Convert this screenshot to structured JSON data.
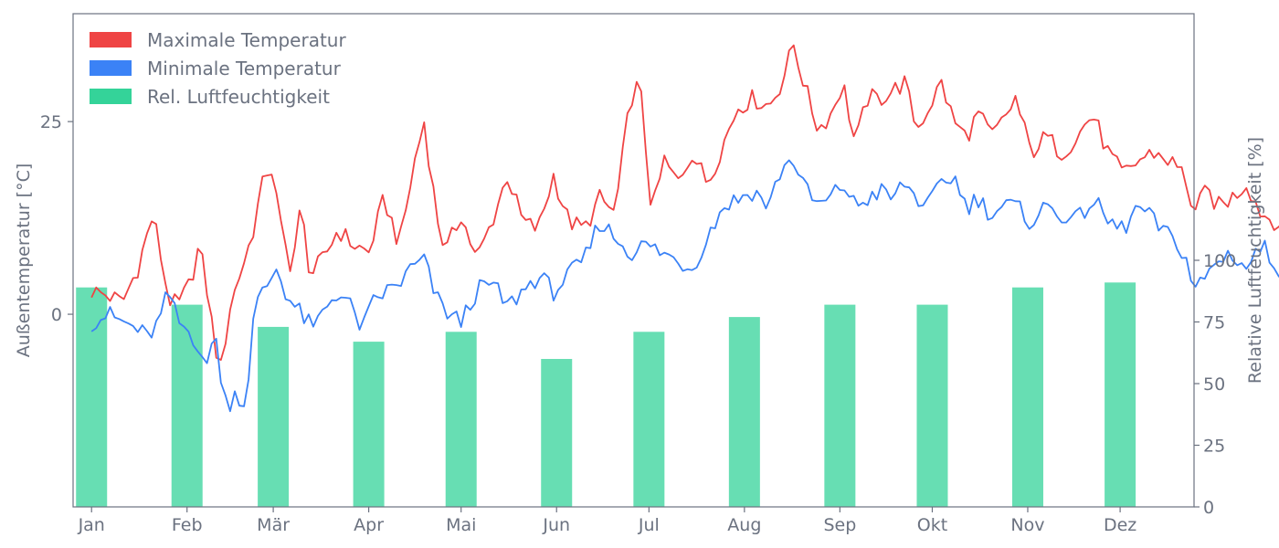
{
  "chart_data": {
    "type": "line+bar",
    "x_axis": {
      "tick_labels": [
        "Jan",
        "Feb",
        "Mär",
        "Apr",
        "Mai",
        "Jun",
        "Jul",
        "Aug",
        "Sep",
        "Okt",
        "Nov",
        "Dez"
      ],
      "range_days": [
        -6,
        358
      ]
    },
    "y_left": {
      "label": "Außentemperatur [°C]",
      "ticks": [
        0,
        25
      ],
      "range": [
        -25,
        39
      ]
    },
    "y_right": {
      "label": "Relative Luftfeuchtigkeit [%]",
      "ticks": [
        0,
        25,
        50,
        75,
        100
      ],
      "range": [
        0,
        200
      ]
    },
    "legend": {
      "position": "top-left",
      "entries": [
        {
          "label": "Maximale Temperatur",
          "color": "#ef4444"
        },
        {
          "label": "Minimale Temperatur",
          "color": "#3b82f6"
        },
        {
          "label": "Rel. Luftfeuchtigkeit",
          "color": "#34d399"
        }
      ]
    },
    "series": [
      {
        "name": "Maximale Temperatur",
        "type": "line",
        "color": "#ef4444",
        "keypoints": [
          [
            0,
            3
          ],
          [
            5,
            2.5
          ],
          [
            10,
            1.5
          ],
          [
            15,
            6
          ],
          [
            20,
            13
          ],
          [
            25,
            2
          ],
          [
            28,
            1
          ],
          [
            32,
            4
          ],
          [
            35,
            9
          ],
          [
            38,
            2
          ],
          [
            40,
            -4
          ],
          [
            42,
            -7
          ],
          [
            45,
            1
          ],
          [
            48,
            5
          ],
          [
            52,
            10
          ],
          [
            55,
            16
          ],
          [
            58,
            20
          ],
          [
            62,
            10
          ],
          [
            65,
            6
          ],
          [
            68,
            14
          ],
          [
            71,
            5
          ],
          [
            75,
            7
          ],
          [
            80,
            11
          ],
          [
            85,
            9
          ],
          [
            90,
            8
          ],
          [
            95,
            15
          ],
          [
            100,
            9
          ],
          [
            105,
            20
          ],
          [
            108,
            25
          ],
          [
            112,
            13
          ],
          [
            115,
            8
          ],
          [
            120,
            13
          ],
          [
            125,
            7
          ],
          [
            130,
            12
          ],
          [
            135,
            18
          ],
          [
            140,
            12
          ],
          [
            145,
            11
          ],
          [
            150,
            18
          ],
          [
            155,
            12
          ],
          [
            160,
            11
          ],
          [
            165,
            15
          ],
          [
            170,
            13
          ],
          [
            175,
            28
          ],
          [
            178,
            30
          ],
          [
            182,
            13
          ],
          [
            186,
            20
          ],
          [
            190,
            17
          ],
          [
            195,
            21
          ],
          [
            200,
            17
          ],
          [
            205,
            22
          ],
          [
            210,
            27
          ],
          [
            215,
            28
          ],
          [
            220,
            27
          ],
          [
            224,
            30
          ],
          [
            228,
            35
          ],
          [
            232,
            29
          ],
          [
            236,
            24
          ],
          [
            240,
            26
          ],
          [
            244,
            30
          ],
          [
            248,
            22
          ],
          [
            252,
            28
          ],
          [
            256,
            28
          ],
          [
            260,
            29
          ],
          [
            264,
            30
          ],
          [
            268,
            24
          ],
          [
            272,
            27
          ],
          [
            276,
            30
          ],
          [
            280,
            25
          ],
          [
            284,
            23
          ],
          [
            288,
            26
          ],
          [
            292,
            23
          ],
          [
            296,
            25
          ],
          [
            300,
            28
          ],
          [
            305,
            21
          ],
          [
            310,
            23
          ],
          [
            315,
            21
          ],
          [
            320,
            23
          ],
          [
            325,
            26
          ],
          [
            330,
            21
          ],
          [
            335,
            18
          ],
          [
            340,
            20
          ],
          [
            345,
            21
          ],
          [
            350,
            20
          ],
          [
            355,
            18
          ],
          [
            358,
            13
          ],
          [
            362,
            16
          ],
          [
            366,
            14
          ],
          [
            370,
            15
          ],
          [
            375,
            17
          ],
          [
            380,
            13
          ],
          [
            385,
            12
          ],
          [
            390,
            9
          ],
          [
            395,
            11
          ],
          [
            400,
            8
          ],
          [
            405,
            6
          ],
          [
            410,
            4
          ],
          [
            415,
            7
          ],
          [
            420,
            3
          ],
          [
            425,
            2
          ],
          [
            430,
            8
          ],
          [
            435,
            9
          ],
          [
            440,
            6
          ],
          [
            443,
            -3
          ],
          [
            447,
            2
          ],
          [
            450,
            8
          ],
          [
            453,
            12
          ]
        ]
      },
      {
        "name": "Minimale Temperatur",
        "type": "line",
        "color": "#3b82f6",
        "keypoints": [
          [
            0,
            -1
          ],
          [
            5,
            0
          ],
          [
            10,
            -1
          ],
          [
            15,
            -2
          ],
          [
            18,
            -3
          ],
          [
            22,
            -1
          ],
          [
            25,
            3
          ],
          [
            28,
            -1
          ],
          [
            31,
            -2
          ],
          [
            35,
            -4
          ],
          [
            38,
            -8
          ],
          [
            40,
            0
          ],
          [
            42,
            -9
          ],
          [
            44,
            -12
          ],
          [
            47,
            -10
          ],
          [
            50,
            -12
          ],
          [
            53,
            1
          ],
          [
            56,
            3
          ],
          [
            60,
            6
          ],
          [
            64,
            2
          ],
          [
            68,
            0
          ],
          [
            72,
            -2
          ],
          [
            76,
            1
          ],
          [
            80,
            3
          ],
          [
            84,
            1
          ],
          [
            88,
            -2
          ],
          [
            92,
            2
          ],
          [
            96,
            3
          ],
          [
            100,
            4
          ],
          [
            104,
            6
          ],
          [
            108,
            7
          ],
          [
            112,
            2
          ],
          [
            116,
            0
          ],
          [
            120,
            -1
          ],
          [
            125,
            3
          ],
          [
            130,
            4
          ],
          [
            135,
            1
          ],
          [
            140,
            3
          ],
          [
            145,
            5
          ],
          [
            150,
            3
          ],
          [
            155,
            5
          ],
          [
            160,
            7
          ],
          [
            165,
            12
          ],
          [
            170,
            10
          ],
          [
            175,
            8
          ],
          [
            180,
            9
          ],
          [
            185,
            8
          ],
          [
            190,
            7
          ],
          [
            195,
            6
          ],
          [
            200,
            10
          ],
          [
            205,
            14
          ],
          [
            210,
            15
          ],
          [
            215,
            16
          ],
          [
            220,
            14
          ],
          [
            224,
            19
          ],
          [
            228,
            20
          ],
          [
            232,
            16
          ],
          [
            236,
            14
          ],
          [
            240,
            15
          ],
          [
            244,
            17
          ],
          [
            248,
            14
          ],
          [
            252,
            15
          ],
          [
            256,
            16
          ],
          [
            260,
            15
          ],
          [
            264,
            17
          ],
          [
            268,
            15
          ],
          [
            272,
            14
          ],
          [
            276,
            17
          ],
          [
            280,
            18
          ],
          [
            284,
            14
          ],
          [
            288,
            15
          ],
          [
            292,
            13
          ],
          [
            296,
            14
          ],
          [
            300,
            14
          ],
          [
            305,
            12
          ],
          [
            310,
            14
          ],
          [
            315,
            13
          ],
          [
            320,
            12
          ],
          [
            325,
            15
          ],
          [
            330,
            12
          ],
          [
            335,
            11
          ],
          [
            340,
            14
          ],
          [
            345,
            12
          ],
          [
            350,
            10
          ],
          [
            355,
            8
          ],
          [
            358,
            3
          ],
          [
            362,
            5
          ],
          [
            366,
            7
          ],
          [
            370,
            8
          ],
          [
            375,
            6
          ],
          [
            380,
            9
          ],
          [
            385,
            6
          ],
          [
            390,
            5
          ],
          [
            395,
            3
          ],
          [
            400,
            1
          ],
          [
            405,
            4
          ],
          [
            410,
            2
          ],
          [
            415,
            0
          ],
          [
            420,
            -1
          ],
          [
            425,
            -2
          ],
          [
            428,
            3
          ],
          [
            432,
            6
          ],
          [
            435,
            3
          ],
          [
            438,
            1
          ],
          [
            441,
            -4
          ],
          [
            444,
            -10
          ],
          [
            447,
            -6
          ],
          [
            450,
            0
          ],
          [
            453,
            5
          ]
        ]
      },
      {
        "name": "Rel. Luftfeuchtigkeit",
        "type": "bar",
        "color": "#34d399",
        "x_days": [
          0,
          31,
          59,
          90,
          120,
          151,
          181,
          212,
          243,
          273,
          304,
          334
        ],
        "values": [
          89,
          82,
          73,
          67,
          71,
          60,
          71,
          77,
          82,
          82,
          89,
          91
        ]
      }
    ]
  }
}
